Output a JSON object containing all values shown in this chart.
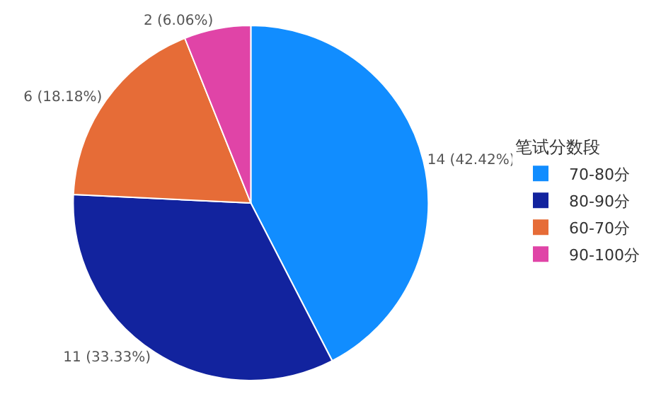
{
  "chart_data": {
    "type": "pie",
    "legend_title": "笔试分数段",
    "categories": [
      "70-80分",
      "80-90分",
      "60-70分",
      "90-100分"
    ],
    "values": [
      14,
      11,
      6,
      2
    ],
    "colors": [
      "#118dff",
      "#12239e",
      "#e66c37",
      "#e044a7"
    ],
    "value_labels": [
      "14 (42.42%)",
      "11 (33.33%)",
      "6 (18.18%)",
      "2 (6.06%)"
    ],
    "legend": "right"
  }
}
